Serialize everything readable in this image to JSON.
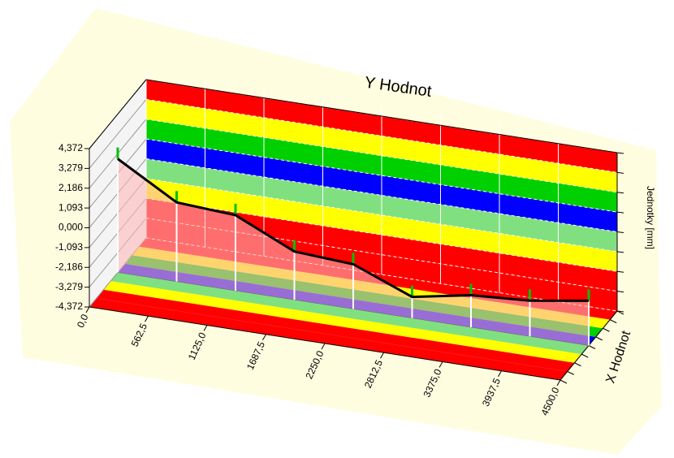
{
  "chart_data": {
    "type": "line3d",
    "title": "Y Hodnot",
    "y_label": "Jednotky [mm]",
    "z_label": "X Hodnot",
    "x": [
      0,
      562.5,
      1125,
      1687.5,
      2250,
      2812.5,
      3375,
      3937.5,
      4500
    ],
    "series": [
      {
        "color": "#000000",
        "values": [
          1.9,
          0.0,
          -0.2,
          -1.7,
          -1.9,
          -3.2,
          -2.6,
          -2.4,
          -1.9
        ]
      }
    ],
    "xlim": [
      0,
      4500
    ],
    "xticks": [
      {
        "value": 0,
        "label": "0,0"
      },
      {
        "value": 562.5,
        "label": "562,5"
      },
      {
        "value": 1125,
        "label": "1125,0"
      },
      {
        "value": 1687.5,
        "label": "1687,5"
      },
      {
        "value": 2250,
        "label": "2250,0"
      },
      {
        "value": 2812.5,
        "label": "2812,5"
      },
      {
        "value": 3375,
        "label": "3375,0"
      },
      {
        "value": 3937.5,
        "label": "3937,5"
      },
      {
        "value": 4500,
        "label": "4500,0"
      }
    ],
    "ylim": [
      -4.372,
      4.372
    ],
    "yticks": [
      {
        "value": -4.372,
        "label": "-4,372"
      },
      {
        "value": -3.279,
        "label": "-3,279"
      },
      {
        "value": -2.186,
        "label": "-2,186"
      },
      {
        "value": -1.093,
        "label": "-1,093"
      },
      {
        "value": 0,
        "label": "0,000"
      },
      {
        "value": 1.093,
        "label": "1,093"
      },
      {
        "value": 2.186,
        "label": "2,186"
      },
      {
        "value": 3.279,
        "label": "3,279"
      },
      {
        "value": 4.372,
        "label": "4,372"
      }
    ],
    "band_colors": [
      "#ff0000",
      "#ff0000",
      "#ffff00",
      "#80e080",
      "#0000ff",
      "#00d000",
      "#ffff00",
      "#ff0000"
    ],
    "area_color": "#ffb8b8",
    "grid": true
  }
}
